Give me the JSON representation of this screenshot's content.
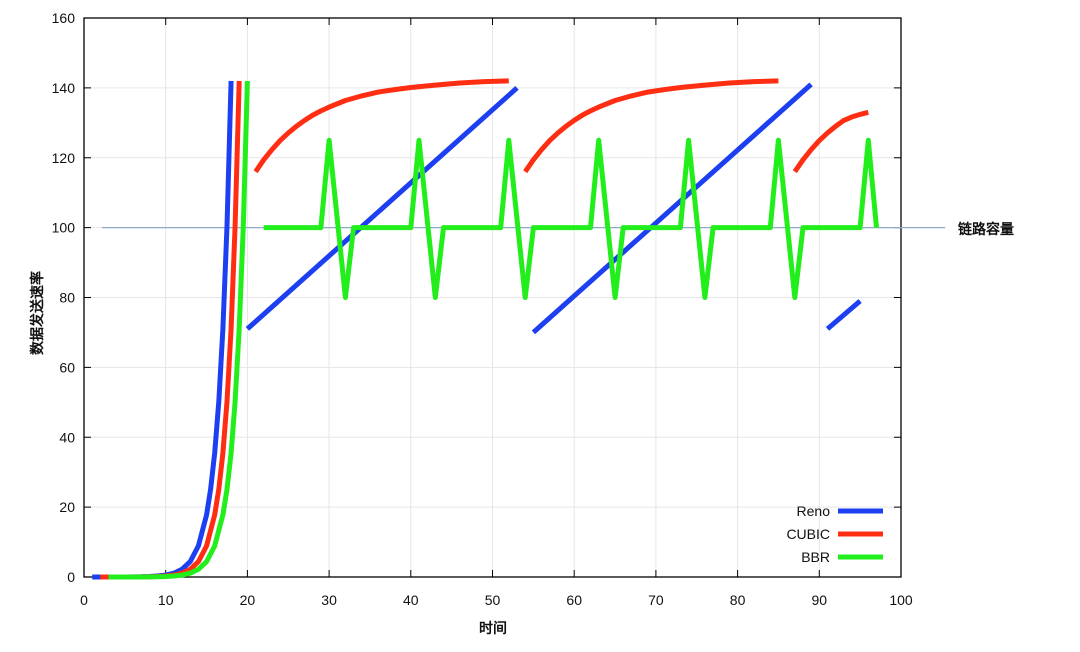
{
  "chart_data": {
    "type": "line",
    "xlabel": "时间",
    "ylabel": "数据发送速率",
    "xlim": [
      0,
      100
    ],
    "ylim": [
      0,
      160
    ],
    "xticks": [
      0,
      10,
      20,
      30,
      40,
      50,
      60,
      70,
      80,
      90,
      100
    ],
    "yticks": [
      0,
      20,
      40,
      60,
      80,
      100,
      120,
      140,
      160
    ],
    "grid": true,
    "legend": "bottom-right",
    "series": [
      {
        "name": "Reno",
        "color": "#1c3ff2",
        "segments": [
          [
            [
              1,
              0
            ],
            [
              2,
              0
            ],
            [
              3,
              0
            ],
            [
              4,
              0
            ],
            [
              5,
              0
            ],
            [
              6,
              0.03
            ],
            [
              7,
              0.07
            ],
            [
              8,
              0.14
            ],
            [
              9,
              0.28
            ],
            [
              10,
              0.55
            ],
            [
              11,
              1.1
            ],
            [
              12,
              2.2
            ],
            [
              13,
              4.4
            ],
            [
              14,
              8.9
            ],
            [
              15,
              17.8
            ],
            [
              15.5,
              25.1
            ],
            [
              16,
              35.5
            ],
            [
              16.5,
              50.2
            ],
            [
              17,
              71
            ],
            [
              17.5,
              100.4
            ],
            [
              18,
              142
            ]
          ],
          [
            [
              20,
              71
            ],
            [
              53,
              140
            ]
          ],
          [
            [
              55,
              70
            ],
            [
              89,
              141
            ]
          ],
          [
            [
              91,
              71
            ],
            [
              95,
              79
            ]
          ]
        ]
      },
      {
        "name": "CUBIC",
        "color": "#ff2e12",
        "segments": [
          [
            [
              2,
              0
            ],
            [
              3,
              0
            ],
            [
              4,
              0
            ],
            [
              5,
              0
            ],
            [
              6,
              0
            ],
            [
              7,
              0.03
            ],
            [
              8,
              0.07
            ],
            [
              9,
              0.14
            ],
            [
              10,
              0.28
            ],
            [
              11,
              0.55
            ],
            [
              12,
              1.1
            ],
            [
              13,
              2.2
            ],
            [
              14,
              4.4
            ],
            [
              15,
              8.9
            ],
            [
              16,
              17.8
            ],
            [
              16.5,
              25.1
            ],
            [
              17,
              35.5
            ],
            [
              17.5,
              50.2
            ],
            [
              18,
              71
            ],
            [
              18.5,
              100.4
            ],
            [
              19,
              142
            ]
          ],
          [
            [
              21,
              116
            ],
            [
              22,
              119.4
            ],
            [
              23,
              122.3
            ],
            [
              24,
              124.9
            ],
            [
              25,
              127.1
            ],
            [
              26,
              129
            ],
            [
              27,
              130.7
            ],
            [
              28,
              132.2
            ],
            [
              29,
              133.4
            ],
            [
              30,
              134.5
            ],
            [
              32,
              136.4
            ],
            [
              34,
              137.7
            ],
            [
              36,
              138.8
            ],
            [
              38,
              139.5
            ],
            [
              40,
              140.1
            ],
            [
              43,
              140.8
            ],
            [
              46,
              141.4
            ],
            [
              49,
              141.8
            ],
            [
              52,
              142
            ]
          ],
          [
            [
              54,
              116
            ],
            [
              55,
              119.4
            ],
            [
              56,
              122.3
            ],
            [
              57,
              124.9
            ],
            [
              58,
              127.1
            ],
            [
              59,
              129
            ],
            [
              60,
              130.7
            ],
            [
              61,
              132.2
            ],
            [
              62,
              133.4
            ],
            [
              63,
              134.5
            ],
            [
              65,
              136.4
            ],
            [
              67,
              137.7
            ],
            [
              69,
              138.8
            ],
            [
              71,
              139.5
            ],
            [
              73,
              140.1
            ],
            [
              76,
              140.8
            ],
            [
              79,
              141.4
            ],
            [
              82,
              141.8
            ],
            [
              85,
              142
            ]
          ],
          [
            [
              87,
              116
            ],
            [
              88,
              119.4
            ],
            [
              89,
              122.3
            ],
            [
              90,
              124.9
            ],
            [
              91,
              127.1
            ],
            [
              92,
              129
            ],
            [
              93,
              130.7
            ],
            [
              94,
              131.7
            ],
            [
              95,
              132.4
            ],
            [
              96,
              133
            ]
          ]
        ]
      },
      {
        "name": "BBR",
        "color": "#22ee1c",
        "segments": [
          [
            [
              3,
              0
            ],
            [
              4,
              0
            ],
            [
              5,
              0
            ],
            [
              6,
              0
            ],
            [
              7,
              0
            ],
            [
              8,
              0.03
            ],
            [
              9,
              0.07
            ],
            [
              10,
              0.14
            ],
            [
              11,
              0.28
            ],
            [
              12,
              0.55
            ],
            [
              13,
              1.1
            ],
            [
              14,
              2.2
            ],
            [
              15,
              4.4
            ],
            [
              16,
              8.9
            ],
            [
              17,
              17.8
            ],
            [
              17.5,
              25.1
            ],
            [
              18,
              35.5
            ],
            [
              18.5,
              50.2
            ],
            [
              19,
              71
            ],
            [
              19.5,
              100.4
            ],
            [
              20,
              142
            ]
          ],
          [
            [
              22,
              100
            ],
            [
              29,
              100
            ],
            [
              30,
              125
            ],
            [
              32,
              80
            ],
            [
              33,
              100
            ],
            [
              40,
              100
            ],
            [
              41,
              125
            ],
            [
              43,
              80
            ],
            [
              44,
              100
            ],
            [
              51,
              100
            ],
            [
              52,
              125
            ],
            [
              54,
              80
            ],
            [
              55,
              100
            ],
            [
              62,
              100
            ],
            [
              63,
              125
            ],
            [
              65,
              80
            ],
            [
              66,
              100
            ],
            [
              73,
              100
            ],
            [
              74,
              125
            ],
            [
              76,
              80
            ],
            [
              77,
              100
            ],
            [
              84,
              100
            ],
            [
              85,
              125
            ],
            [
              87,
              80
            ],
            [
              88,
              100
            ],
            [
              95,
              100
            ],
            [
              96,
              125
            ],
            [
              97,
              100
            ]
          ]
        ]
      }
    ],
    "reference_line": {
      "y": 100,
      "x_range": [
        2.2,
        105.4
      ],
      "label": "链路容量",
      "color": "#8faac9"
    }
  }
}
